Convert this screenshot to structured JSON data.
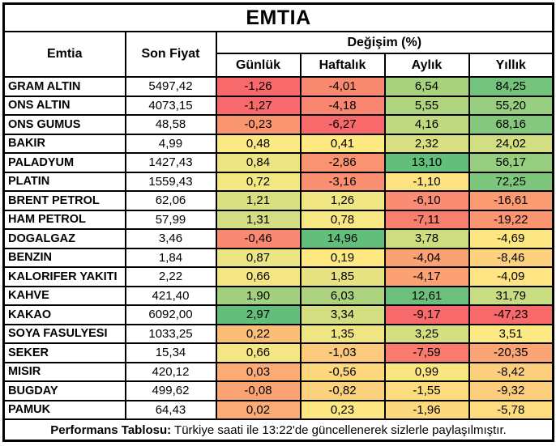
{
  "title": "EMTIA",
  "header": {
    "emtia": "Emtia",
    "son_fiyat": "Son Fiyat",
    "degisim": "Değişim (%)",
    "periods": [
      "Günlük",
      "Haftalık",
      "Aylık",
      "Yıllık"
    ]
  },
  "rows": [
    {
      "name": "GRAM ALTIN",
      "price": "5497,42",
      "changes": [
        {
          "value": "-1,26",
          "bg": "#F8696B"
        },
        {
          "value": "-4,01",
          "bg": "#F98A70"
        },
        {
          "value": "6,54",
          "bg": "#A9D27F"
        },
        {
          "value": "84,25",
          "bg": "#74C37C"
        }
      ]
    },
    {
      "name": "ONS ALTIN",
      "price": "4073,15",
      "changes": [
        {
          "value": "-1,27",
          "bg": "#F8696B"
        },
        {
          "value": "-4,18",
          "bg": "#F98670"
        },
        {
          "value": "5,55",
          "bg": "#B0D480"
        },
        {
          "value": "55,20",
          "bg": "#98CE7F"
        }
      ]
    },
    {
      "name": "ONS GUMUS",
      "price": "48,58",
      "changes": [
        {
          "value": "-0,23",
          "bg": "#F9966F"
        },
        {
          "value": "-6,27",
          "bg": "#F8696B"
        },
        {
          "value": "4,16",
          "bg": "#C1DA81"
        },
        {
          "value": "68,16",
          "bg": "#85C87D"
        }
      ]
    },
    {
      "name": "BAKIR",
      "price": "4,99",
      "changes": [
        {
          "value": "0,48",
          "bg": "#FBE983"
        },
        {
          "value": "0,41",
          "bg": "#FEE983"
        },
        {
          "value": "2,32",
          "bg": "#D9E082"
        },
        {
          "value": "24,02",
          "bg": "#D3DE82"
        }
      ]
    },
    {
      "name": "PALADYUM",
      "price": "1427,43",
      "changes": [
        {
          "value": "0,84",
          "bg": "#EDE583"
        },
        {
          "value": "-2,86",
          "bg": "#FA9372"
        },
        {
          "value": "13,10",
          "bg": "#63BE7B"
        },
        {
          "value": "56,17",
          "bg": "#97CD7E"
        }
      ]
    },
    {
      "name": "PLATIN",
      "price": "1559,43",
      "changes": [
        {
          "value": "0,72",
          "bg": "#F2E783"
        },
        {
          "value": "-3,16",
          "bg": "#FA9071"
        },
        {
          "value": "-1,10",
          "bg": "#FDE282"
        },
        {
          "value": "72,25",
          "bg": "#7FC67D"
        }
      ]
    },
    {
      "name": "BRENT PETROL",
      "price": "62,06",
      "changes": [
        {
          "value": "1,21",
          "bg": "#D8E082"
        },
        {
          "value": "1,26",
          "bg": "#F0E683"
        },
        {
          "value": "-6,10",
          "bg": "#F98C73"
        },
        {
          "value": "-16,61",
          "bg": "#FA9B72"
        }
      ]
    },
    {
      "name": "HAM PETROL",
      "price": "57,99",
      "changes": [
        {
          "value": "1,31",
          "bg": "#D3DE82"
        },
        {
          "value": "0,78",
          "bg": "#F8E883"
        },
        {
          "value": "-7,11",
          "bg": "#F87F6E"
        },
        {
          "value": "-19,22",
          "bg": "#FA9471"
        }
      ]
    },
    {
      "name": "DOGALGAZ",
      "price": "3,46",
      "changes": [
        {
          "value": "-0,46",
          "bg": "#F98972"
        },
        {
          "value": "14,96",
          "bg": "#63BE7B"
        },
        {
          "value": "3,78",
          "bg": "#CFDD81"
        },
        {
          "value": "-4,69",
          "bg": "#FDE782"
        }
      ]
    },
    {
      "name": "BENZIN",
      "price": "1,84",
      "changes": [
        {
          "value": "0,87",
          "bg": "#ECE583"
        },
        {
          "value": "0,19",
          "bg": "#FEE983"
        },
        {
          "value": "-4,04",
          "bg": "#FBA274"
        },
        {
          "value": "-8,46",
          "bg": "#FDD27E"
        }
      ]
    },
    {
      "name": "KALORIFER YAKITI",
      "price": "2,22",
      "changes": [
        {
          "value": "0,66",
          "bg": "#F4E783"
        },
        {
          "value": "1,85",
          "bg": "#E7E383"
        },
        {
          "value": "-4,17",
          "bg": "#FBA173"
        },
        {
          "value": "-4,09",
          "bg": "#FEE482"
        }
      ]
    },
    {
      "name": "KAHVE",
      "price": "421,40",
      "changes": [
        {
          "value": "1,90",
          "bg": "#A3D07F"
        },
        {
          "value": "6,03",
          "bg": "#AED37F"
        },
        {
          "value": "12,61",
          "bg": "#6CC07B"
        },
        {
          "value": "31,79",
          "bg": "#C8DC81"
        }
      ]
    },
    {
      "name": "KAKAO",
      "price": "6092,00",
      "changes": [
        {
          "value": "2,97",
          "bg": "#63BE7B"
        },
        {
          "value": "3,34",
          "bg": "#D3DE82"
        },
        {
          "value": "-9,17",
          "bg": "#F8696B"
        },
        {
          "value": "-47,23",
          "bg": "#F8696B"
        }
      ]
    },
    {
      "name": "SOYA FASULYESI",
      "price": "1033,25",
      "changes": [
        {
          "value": "0,22",
          "bg": "#FBBE79"
        },
        {
          "value": "1,35",
          "bg": "#EFE683"
        },
        {
          "value": "3,25",
          "bg": "#D5DF82"
        },
        {
          "value": "3,51",
          "bg": "#FEEA84"
        }
      ]
    },
    {
      "name": "SEKER",
      "price": "15,34",
      "changes": [
        {
          "value": "0,66",
          "bg": "#F4E783"
        },
        {
          "value": "-1,03",
          "bg": "#FCCA7C"
        },
        {
          "value": "-7,59",
          "bg": "#F87B6E"
        },
        {
          "value": "-20,35",
          "bg": "#FBA576"
        }
      ]
    },
    {
      "name": "MISIR",
      "price": "420,12",
      "changes": [
        {
          "value": "0,03",
          "bg": "#FBAC76"
        },
        {
          "value": "-0,56",
          "bg": "#FCD77E"
        },
        {
          "value": "0,99",
          "bg": "#FAE681"
        },
        {
          "value": "-8,42",
          "bg": "#FCCF7D"
        }
      ]
    },
    {
      "name": "BUGDAY",
      "price": "499,62",
      "changes": [
        {
          "value": "-0,08",
          "bg": "#FAA473"
        },
        {
          "value": "-0,82",
          "bg": "#FCD17D"
        },
        {
          "value": "-1,55",
          "bg": "#FDDC80"
        },
        {
          "value": "-9,32",
          "bg": "#FCCD7C"
        }
      ]
    },
    {
      "name": "PAMUK",
      "price": "64,43",
      "changes": [
        {
          "value": "0,02",
          "bg": "#FBAB75"
        },
        {
          "value": "0,23",
          "bg": "#FDE782"
        },
        {
          "value": "-1,96",
          "bg": "#FCD97F"
        },
        {
          "value": "-5,78",
          "bg": "#FDDC80"
        }
      ]
    }
  ],
  "footer": {
    "bold_label": "Performans Tablosu:",
    "rest": " Türkiye saati ile 13:22'de güncellenerek sizlerle paylaşılmıştır."
  },
  "style_colors": {
    "border": "#000000",
    "background": "#FFFFFF",
    "scale_negative": "#F8696B",
    "scale_neutral": "#FFEB84",
    "scale_positive": "#63BE7B"
  },
  "chart_data": {
    "type": "table",
    "title": "EMTIA",
    "group_header": "Değişim (%)",
    "columns": [
      "Emtia",
      "Son Fiyat",
      "Günlük",
      "Haftalık",
      "Aylık",
      "Yıllık"
    ],
    "rows": [
      [
        "GRAM ALTIN",
        5497.42,
        -1.26,
        -4.01,
        6.54,
        84.25
      ],
      [
        "ONS ALTIN",
        4073.15,
        -1.27,
        -4.18,
        5.55,
        55.2
      ],
      [
        "ONS GUMUS",
        48.58,
        -0.23,
        -6.27,
        4.16,
        68.16
      ],
      [
        "BAKIR",
        4.99,
        0.48,
        0.41,
        2.32,
        24.02
      ],
      [
        "PALADYUM",
        1427.43,
        0.84,
        -2.86,
        13.1,
        56.17
      ],
      [
        "PLATIN",
        1559.43,
        0.72,
        -3.16,
        -1.1,
        72.25
      ],
      [
        "BRENT PETROL",
        62.06,
        1.21,
        1.26,
        -6.1,
        -16.61
      ],
      [
        "HAM PETROL",
        57.99,
        1.31,
        0.78,
        -7.11,
        -19.22
      ],
      [
        "DOGALGAZ",
        3.46,
        -0.46,
        14.96,
        3.78,
        -4.69
      ],
      [
        "BENZIN",
        1.84,
        0.87,
        0.19,
        -4.04,
        -8.46
      ],
      [
        "KALORIFER YAKITI",
        2.22,
        0.66,
        1.85,
        -4.17,
        -4.09
      ],
      [
        "KAHVE",
        421.4,
        1.9,
        6.03,
        12.61,
        31.79
      ],
      [
        "KAKAO",
        6092.0,
        2.97,
        3.34,
        -9.17,
        -47.23
      ],
      [
        "SOYA FASULYESI",
        1033.25,
        0.22,
        1.35,
        3.25,
        3.51
      ],
      [
        "SEKER",
        15.34,
        0.66,
        -1.03,
        -7.59,
        -20.35
      ],
      [
        "MISIR",
        420.12,
        0.03,
        -0.56,
        0.99,
        -8.42
      ],
      [
        "BUGDAY",
        499.62,
        -0.08,
        -0.82,
        -1.55,
        -9.32
      ],
      [
        "PAMUK",
        64.43,
        0.02,
        0.23,
        -1.96,
        -5.78
      ]
    ],
    "notes": "Heatmap conditional formatting: red=negative extreme, yellow=neutral, green=positive extreme, applied per column",
    "footer_text": "Performans Tablosu: Türkiye saati ile 13:22'de güncellenerek sizlerle paylaşılmıştır."
  }
}
